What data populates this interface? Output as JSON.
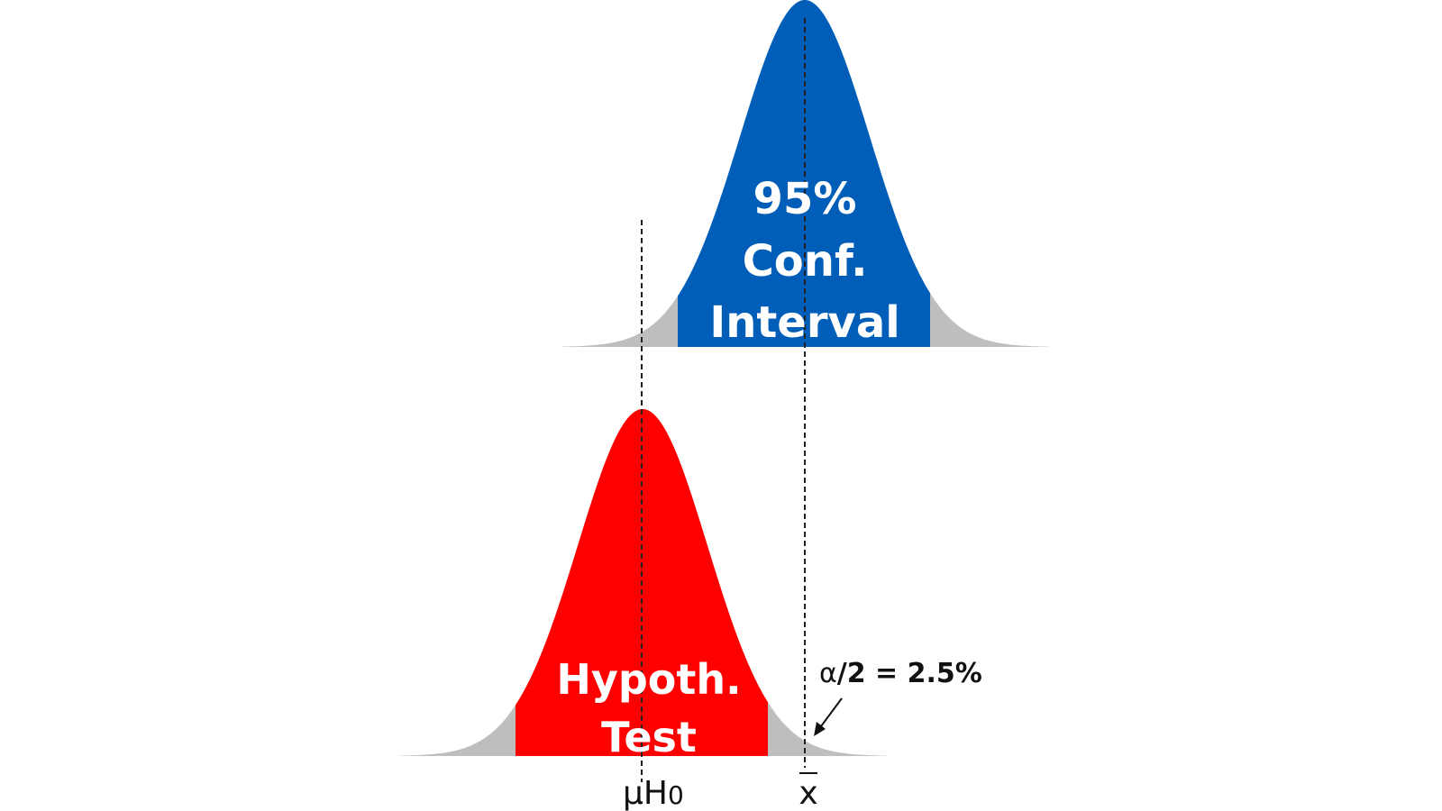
{
  "diagram": {
    "ci_curve": {
      "label_lines": [
        "95%",
        "Conf.",
        "Interval"
      ],
      "body_color": "#005EB8",
      "tail_color": "#BEBEBE"
    },
    "ht_curve": {
      "label_lines": [
        "Hypoth.",
        "Test"
      ],
      "body_color": "#FF0000",
      "tail_color": "#BEBEBE"
    },
    "alpha_annotation": {
      "alpha_symbol": "α",
      "text": "/2 = 2.5%"
    },
    "axis_labels": {
      "mu": "μ",
      "mu_subscript": "H",
      "mu_zero": "0",
      "xbar": "x"
    }
  }
}
